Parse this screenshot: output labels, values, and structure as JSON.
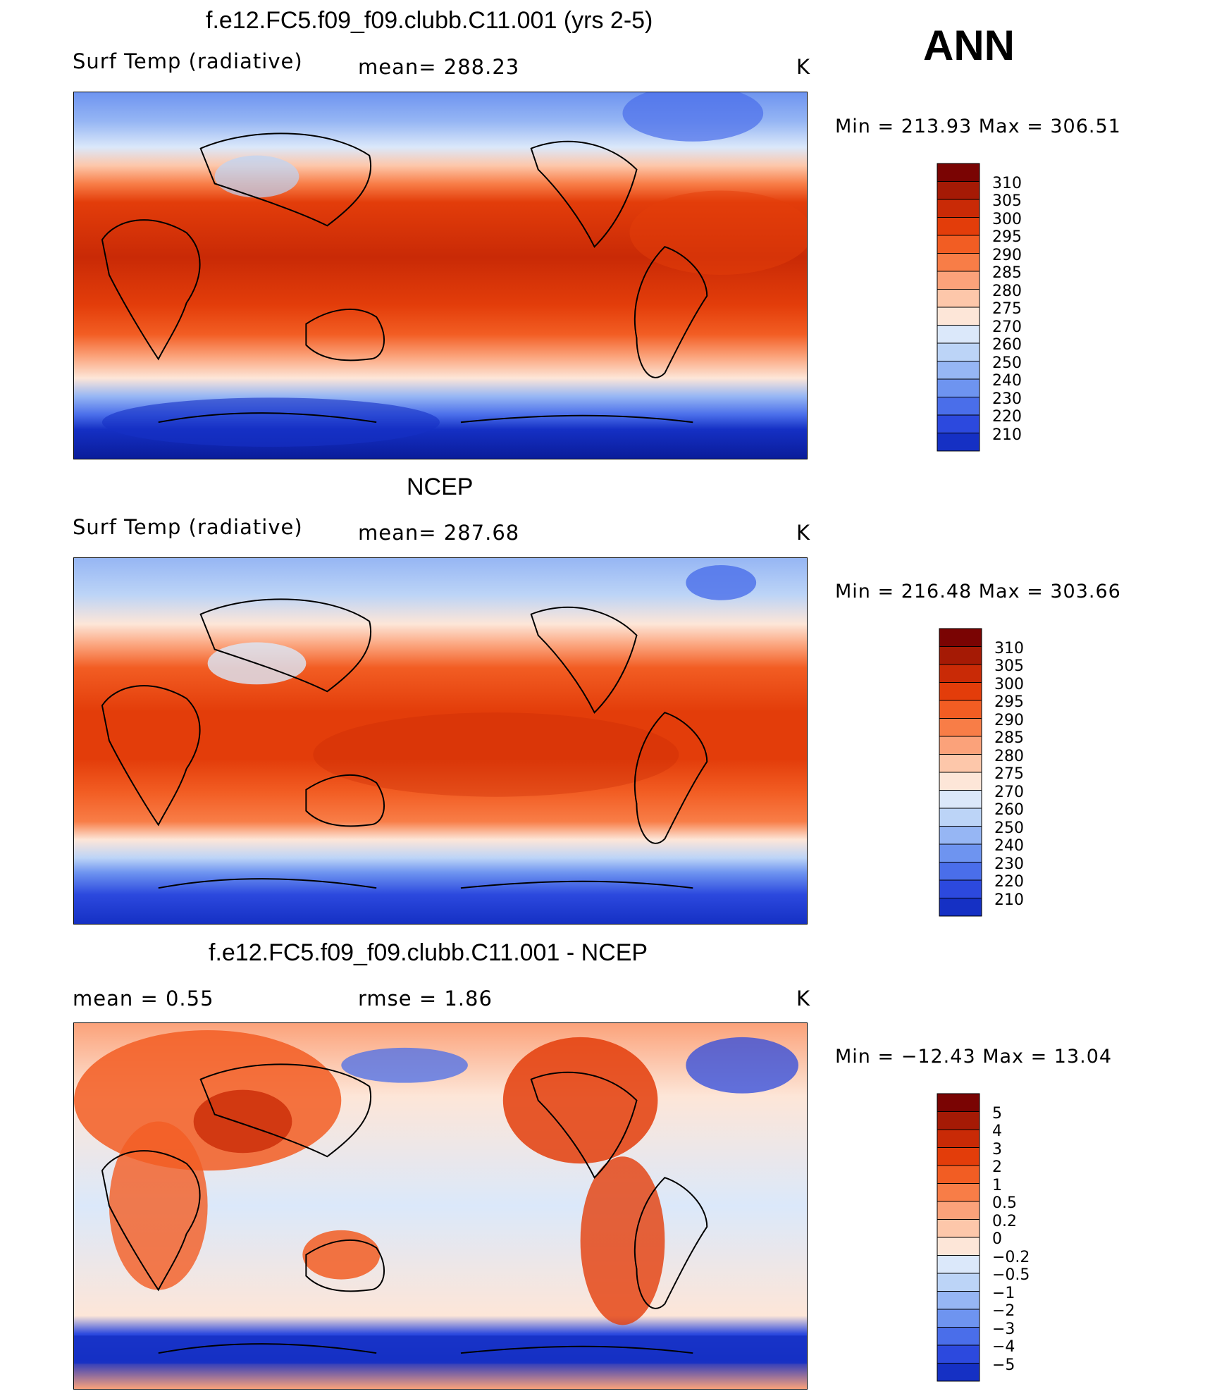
{
  "season": "ANN",
  "panels": [
    {
      "title": "f.e12.FC5.f09_f09.clubb.C11.001 (yrs 2-5)",
      "left_label": "Surf Temp (radiative)",
      "mid_label": "mean= 288.23",
      "unit": "K",
      "minmax": "Min = 213.93 Max = 306.51",
      "colorbar_labels": [
        "310",
        "305",
        "300",
        "295",
        "290",
        "285",
        "280",
        "275",
        "270",
        "260",
        "250",
        "240",
        "230",
        "220",
        "210"
      ]
    },
    {
      "title": "NCEP",
      "left_label": "Surf Temp (radiative)",
      "mid_label": "mean= 287.68",
      "unit": "K",
      "minmax": "Min = 216.48 Max = 303.66",
      "colorbar_labels": [
        "310",
        "305",
        "300",
        "295",
        "290",
        "285",
        "280",
        "275",
        "270",
        "260",
        "250",
        "240",
        "230",
        "220",
        "210"
      ]
    },
    {
      "title": "f.e12.FC5.f09_f09.clubb.C11.001 - NCEP",
      "left_label": "mean =    0.55",
      "mid_label": "rmse =    1.86",
      "unit": "K",
      "minmax": "Min = −12.43 Max =   13.04",
      "colorbar_labels": [
        "5",
        "4",
        "3",
        "2",
        "1",
        "0.5",
        "0.2",
        "0",
        "−0.2",
        "−0.5",
        "−1",
        "−2",
        "−3",
        "−4",
        "−5"
      ]
    }
  ],
  "colors": {
    "temp_scale": [
      "#7a0403",
      "#a51a05",
      "#c92a06",
      "#e33d0a",
      "#f25d23",
      "#f87d47",
      "#fba27a",
      "#fdc7aa",
      "#fde6d8",
      "#dbe8fa",
      "#bcd4f7",
      "#96b6f4",
      "#6e94f0",
      "#4a6eea",
      "#2c49de",
      "#1530c4",
      "#0a1c9a",
      "#050f73"
    ],
    "diff_scale": [
      "#7a0403",
      "#a51a05",
      "#c92a06",
      "#e33d0a",
      "#f25d23",
      "#f87d47",
      "#fba27a",
      "#fdc7aa",
      "#fde6d8",
      "#dbe8fa",
      "#bcd4f7",
      "#96b6f4",
      "#6e94f0",
      "#4a6eea",
      "#2c49de",
      "#1530c4",
      "#050f73"
    ]
  }
}
